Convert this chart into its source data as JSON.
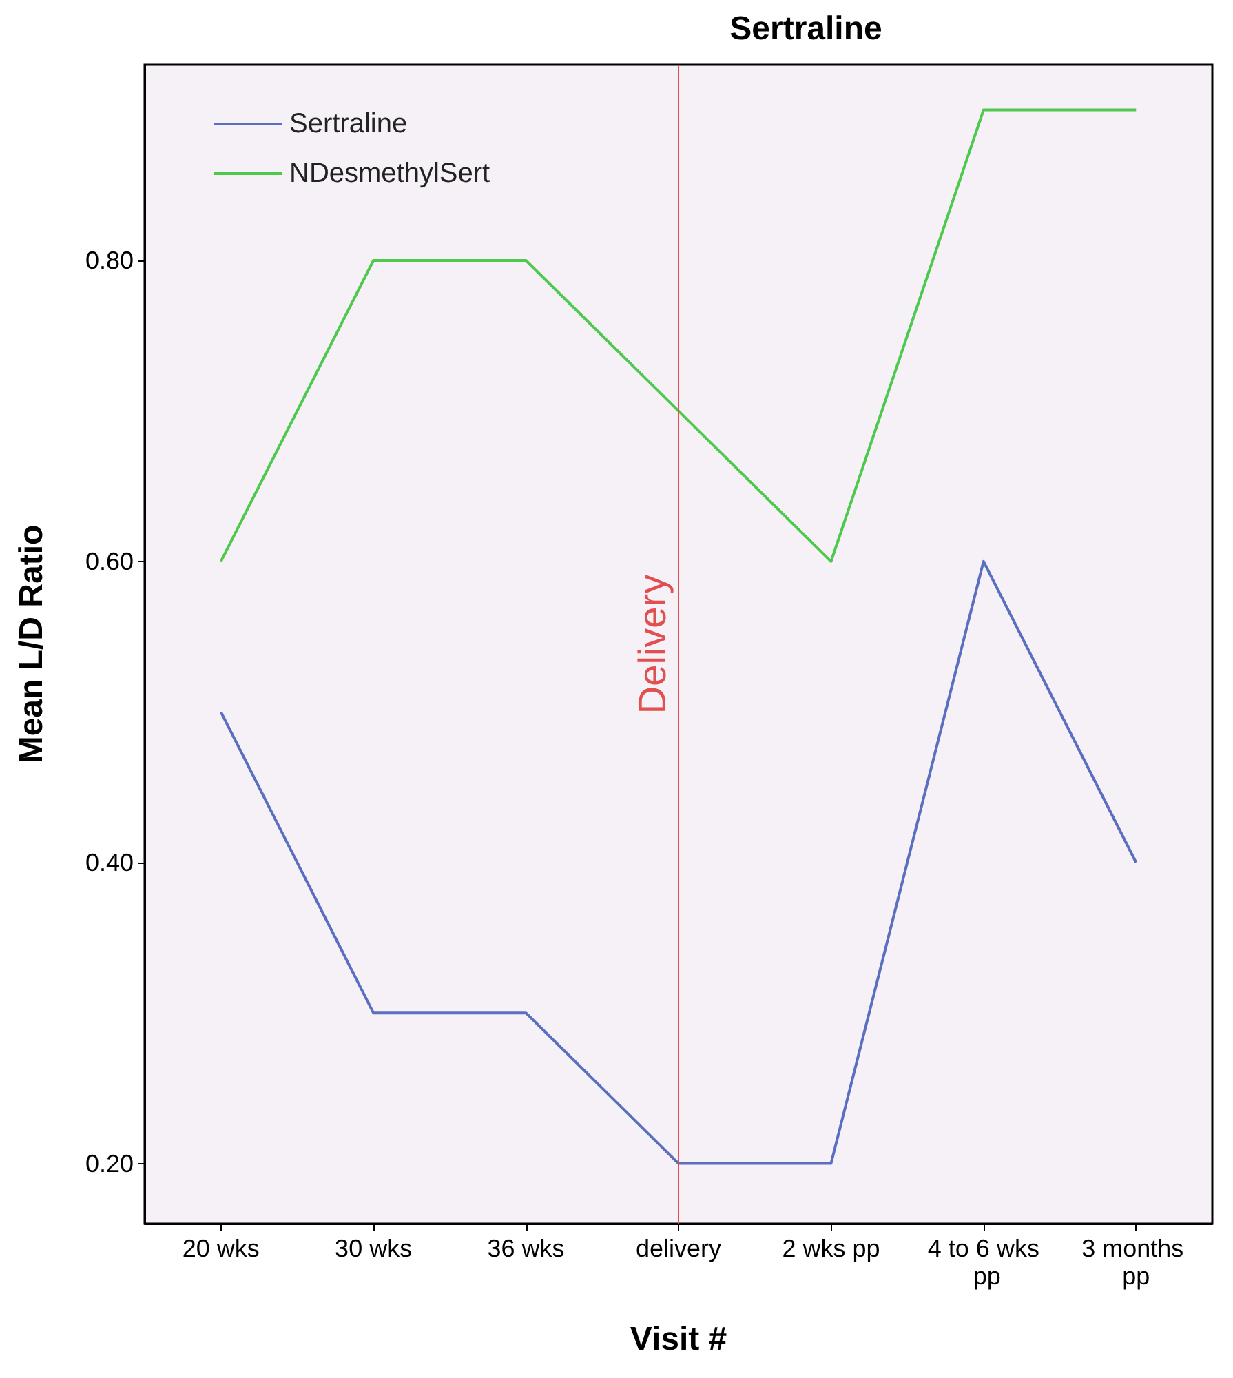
{
  "chart_data": {
    "type": "line",
    "title": "Sertraline",
    "xlabel": "Visit #",
    "ylabel": "Mean L/D Ratio",
    "categories": [
      "20 wks",
      "30 wks",
      "36 wks",
      "delivery",
      "2 wks pp",
      "4 to 6 wks pp",
      "3 months pp"
    ],
    "series": [
      {
        "name": "Sertraline",
        "color": "#5b6fc0",
        "values": [
          0.5,
          0.3,
          0.3,
          0.2,
          0.2,
          0.6,
          0.4
        ]
      },
      {
        "name": "NDesmethylSert",
        "color": "#4ec94e",
        "values": [
          0.6,
          0.8,
          0.8,
          0.7,
          0.6,
          0.9,
          0.9
        ]
      }
    ],
    "ylim": [
      0.16,
      0.93
    ],
    "yticks": [
      {
        "value": 0.2,
        "label": "0.20"
      },
      {
        "value": 0.4,
        "label": "0.40"
      },
      {
        "value": 0.6,
        "label": "0.60"
      },
      {
        "value": 0.8,
        "label": "0.80"
      }
    ],
    "ref_lines": [
      {
        "axis": "x",
        "value": "delivery",
        "label": "Delivery",
        "color": "#e05050"
      }
    ],
    "grid": false,
    "legend": "top left",
    "marker": "none",
    "line_style": "solid"
  }
}
